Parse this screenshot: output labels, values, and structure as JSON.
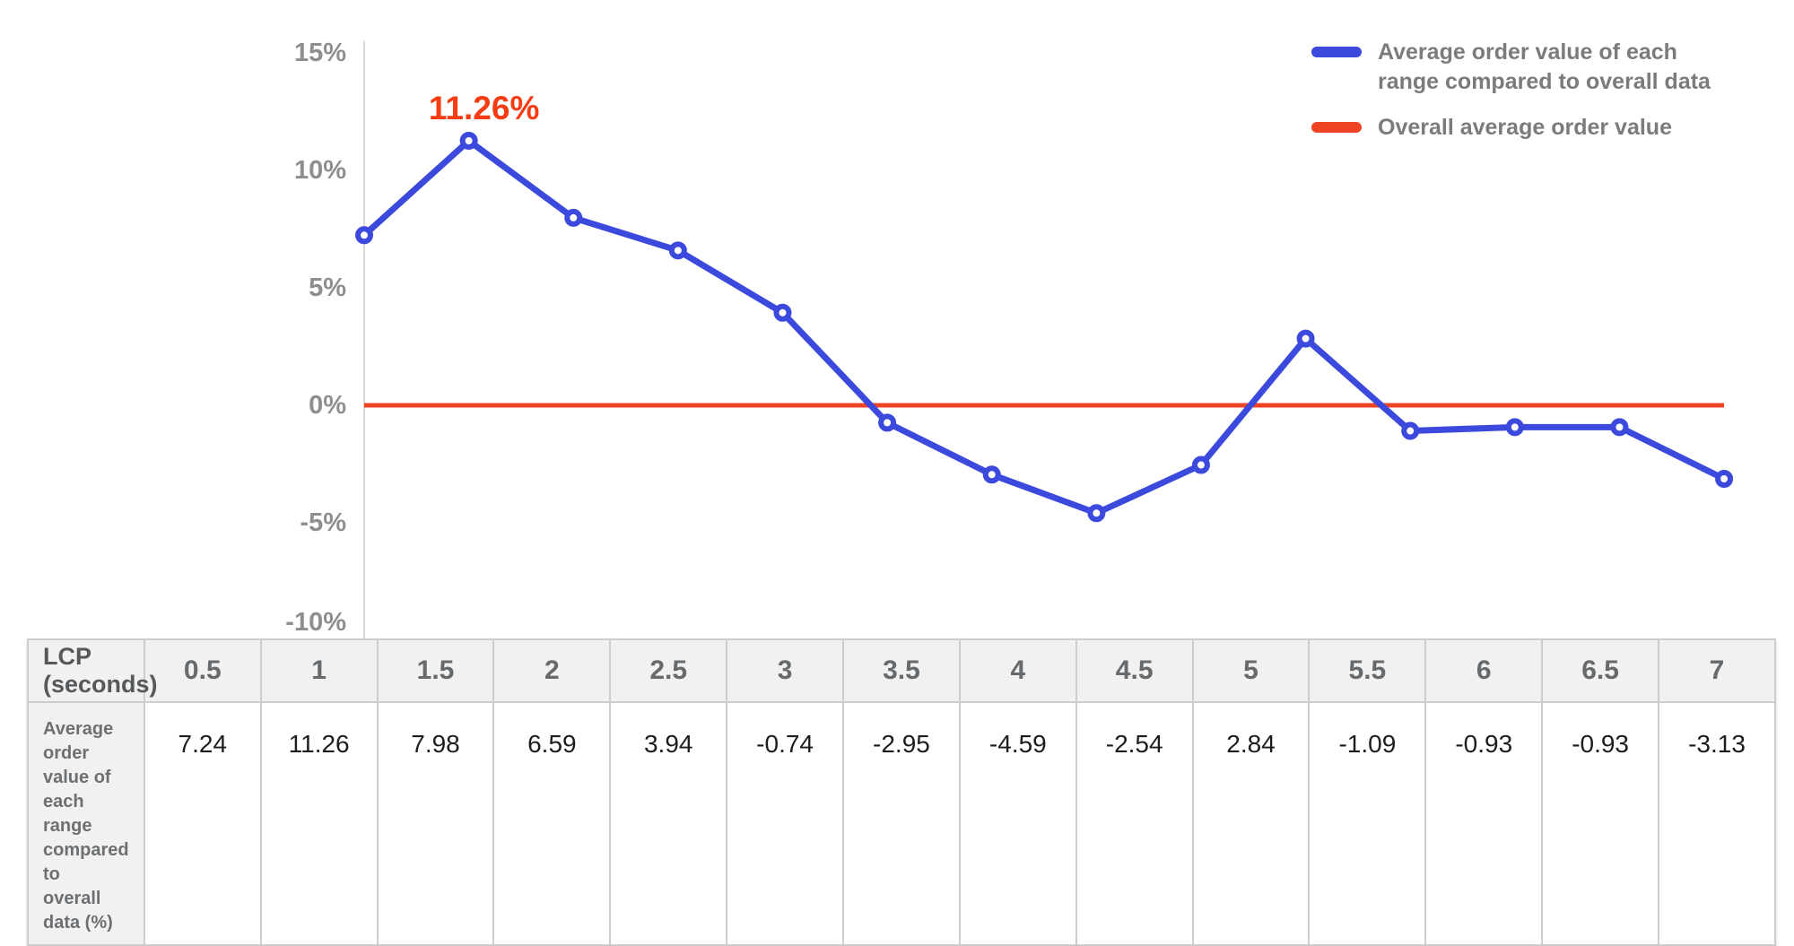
{
  "chart_data": {
    "type": "line",
    "x": [
      0.5,
      1,
      1.5,
      2,
      2.5,
      3,
      3.5,
      4,
      4.5,
      5,
      5.5,
      6,
      6.5,
      7
    ],
    "xlabel": "LCP (seconds)",
    "series": [
      {
        "name": "Average order value of each range compared to overall data",
        "values": [
          7.24,
          11.26,
          7.98,
          6.59,
          3.94,
          -0.74,
          -2.95,
          -4.59,
          -2.54,
          2.84,
          -1.09,
          -0.93,
          -0.93,
          -3.13
        ],
        "color": "#3c49dd",
        "marker": "open-circle"
      },
      {
        "name": "Overall average order value",
        "type": "constant-line",
        "value": 0,
        "color": "#ee4424"
      }
    ],
    "yticks": [
      {
        "label": "15%",
        "value": 15
      },
      {
        "label": "10%",
        "value": 10
      },
      {
        "label": "5%",
        "value": 5
      },
      {
        "label": "0%",
        "value": 0
      },
      {
        "label": "-5%",
        "value": -5
      },
      {
        "label": "-10%",
        "value": -10
      }
    ],
    "ylim": [
      -10,
      15
    ],
    "grid": false,
    "legend_position": "top-right",
    "annotation": {
      "text": "11.26%",
      "x": 1,
      "y": 11.26,
      "color": "#f53c12"
    }
  },
  "legend": {
    "items": [
      {
        "color": "#3c49dd",
        "label_lines": [
          "Average order value of each",
          "range compared to overall data"
        ]
      },
      {
        "color": "#ee4424",
        "label_lines": [
          "Overall average order value"
        ]
      }
    ]
  },
  "table": {
    "header_label": "LCP (seconds)",
    "row_label": "Average order value of each range compared to overall data (%)",
    "columns": [
      "0.5",
      "1",
      "1.5",
      "2",
      "2.5",
      "3",
      "3.5",
      "4",
      "4.5",
      "5",
      "5.5",
      "6",
      "6.5",
      "7"
    ],
    "values": [
      "7.24",
      "11.26",
      "7.98",
      "6.59",
      "3.94",
      "-0.74",
      "-2.95",
      "-4.59",
      "-2.54",
      "2.84",
      "-1.09",
      "-0.93",
      "-0.93",
      "-3.13"
    ]
  },
  "colors": {
    "series_line": "#3c49dd",
    "overall_line": "#ee4424",
    "annotation": "#f53c12",
    "axis_label": "#8e8e8e",
    "axis_line": "#d9d9d9",
    "legend_text": "#7b7b7b",
    "table_header_bg": "#f1f1f1",
    "table_border": "#cdcdcd",
    "table_value_text": "#1d1d1d"
  }
}
